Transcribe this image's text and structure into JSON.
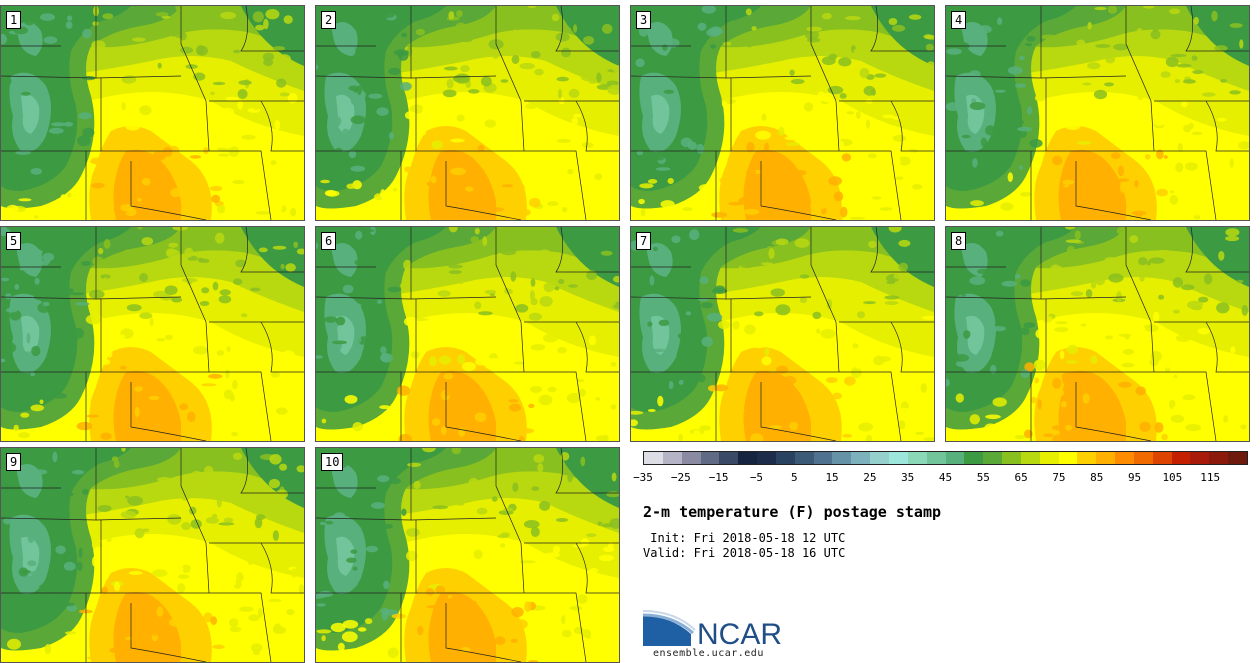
{
  "members": [
    "1",
    "2",
    "3",
    "4",
    "5",
    "6",
    "7",
    "8",
    "9",
    "10"
  ],
  "chart_data": {
    "type": "heatmap",
    "title": "2-m temperature (F) postage stamp",
    "variable": "2-m temperature",
    "units": "F",
    "colorbar": {
      "colors": [
        "#dddde6",
        "#b4b4c6",
        "#8a8aa2",
        "#606a84",
        "#3a4a66",
        "#172440",
        "#1c2c4a",
        "#2a4262",
        "#3b5a78",
        "#4f7290",
        "#6592a6",
        "#7db2bc",
        "#95d0cc",
        "#9ce6dc",
        "#8ad8b8",
        "#72c49a",
        "#58b07c",
        "#3c9a42",
        "#5aa838",
        "#88c020",
        "#b8d810",
        "#e6ef00",
        "#ffff00",
        "#ffd000",
        "#ffb000",
        "#ff8c00",
        "#f06a00",
        "#dc4400",
        "#c42000",
        "#a81a0a",
        "#8c1a0c",
        "#6e1a0c"
      ],
      "tick_labels": [
        "-35",
        "-25",
        "-15",
        "-5",
        "5",
        "15",
        "25",
        "35",
        "45",
        "55",
        "65",
        "75",
        "85",
        "95",
        "105",
        "115"
      ],
      "range": [
        -40,
        120
      ]
    }
  },
  "init_line": " Init: Fri 2018-05-18 12 UTC",
  "valid_line": "Valid: Fri 2018-05-18 16 UTC",
  "logo": {
    "text": "NCAR",
    "url": "ensemble.ucar.edu"
  }
}
